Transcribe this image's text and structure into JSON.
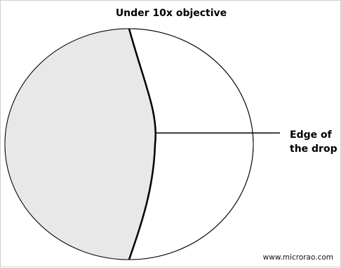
{
  "diagram": {
    "title": "Under 10x objective",
    "callout_line1": "Edge of",
    "callout_line2": "the drop",
    "watermark": "www.microrao.com",
    "colors": {
      "drop_fill": "#e8e8e8",
      "field_fill": "#ffffff",
      "outline": "#000000"
    }
  }
}
